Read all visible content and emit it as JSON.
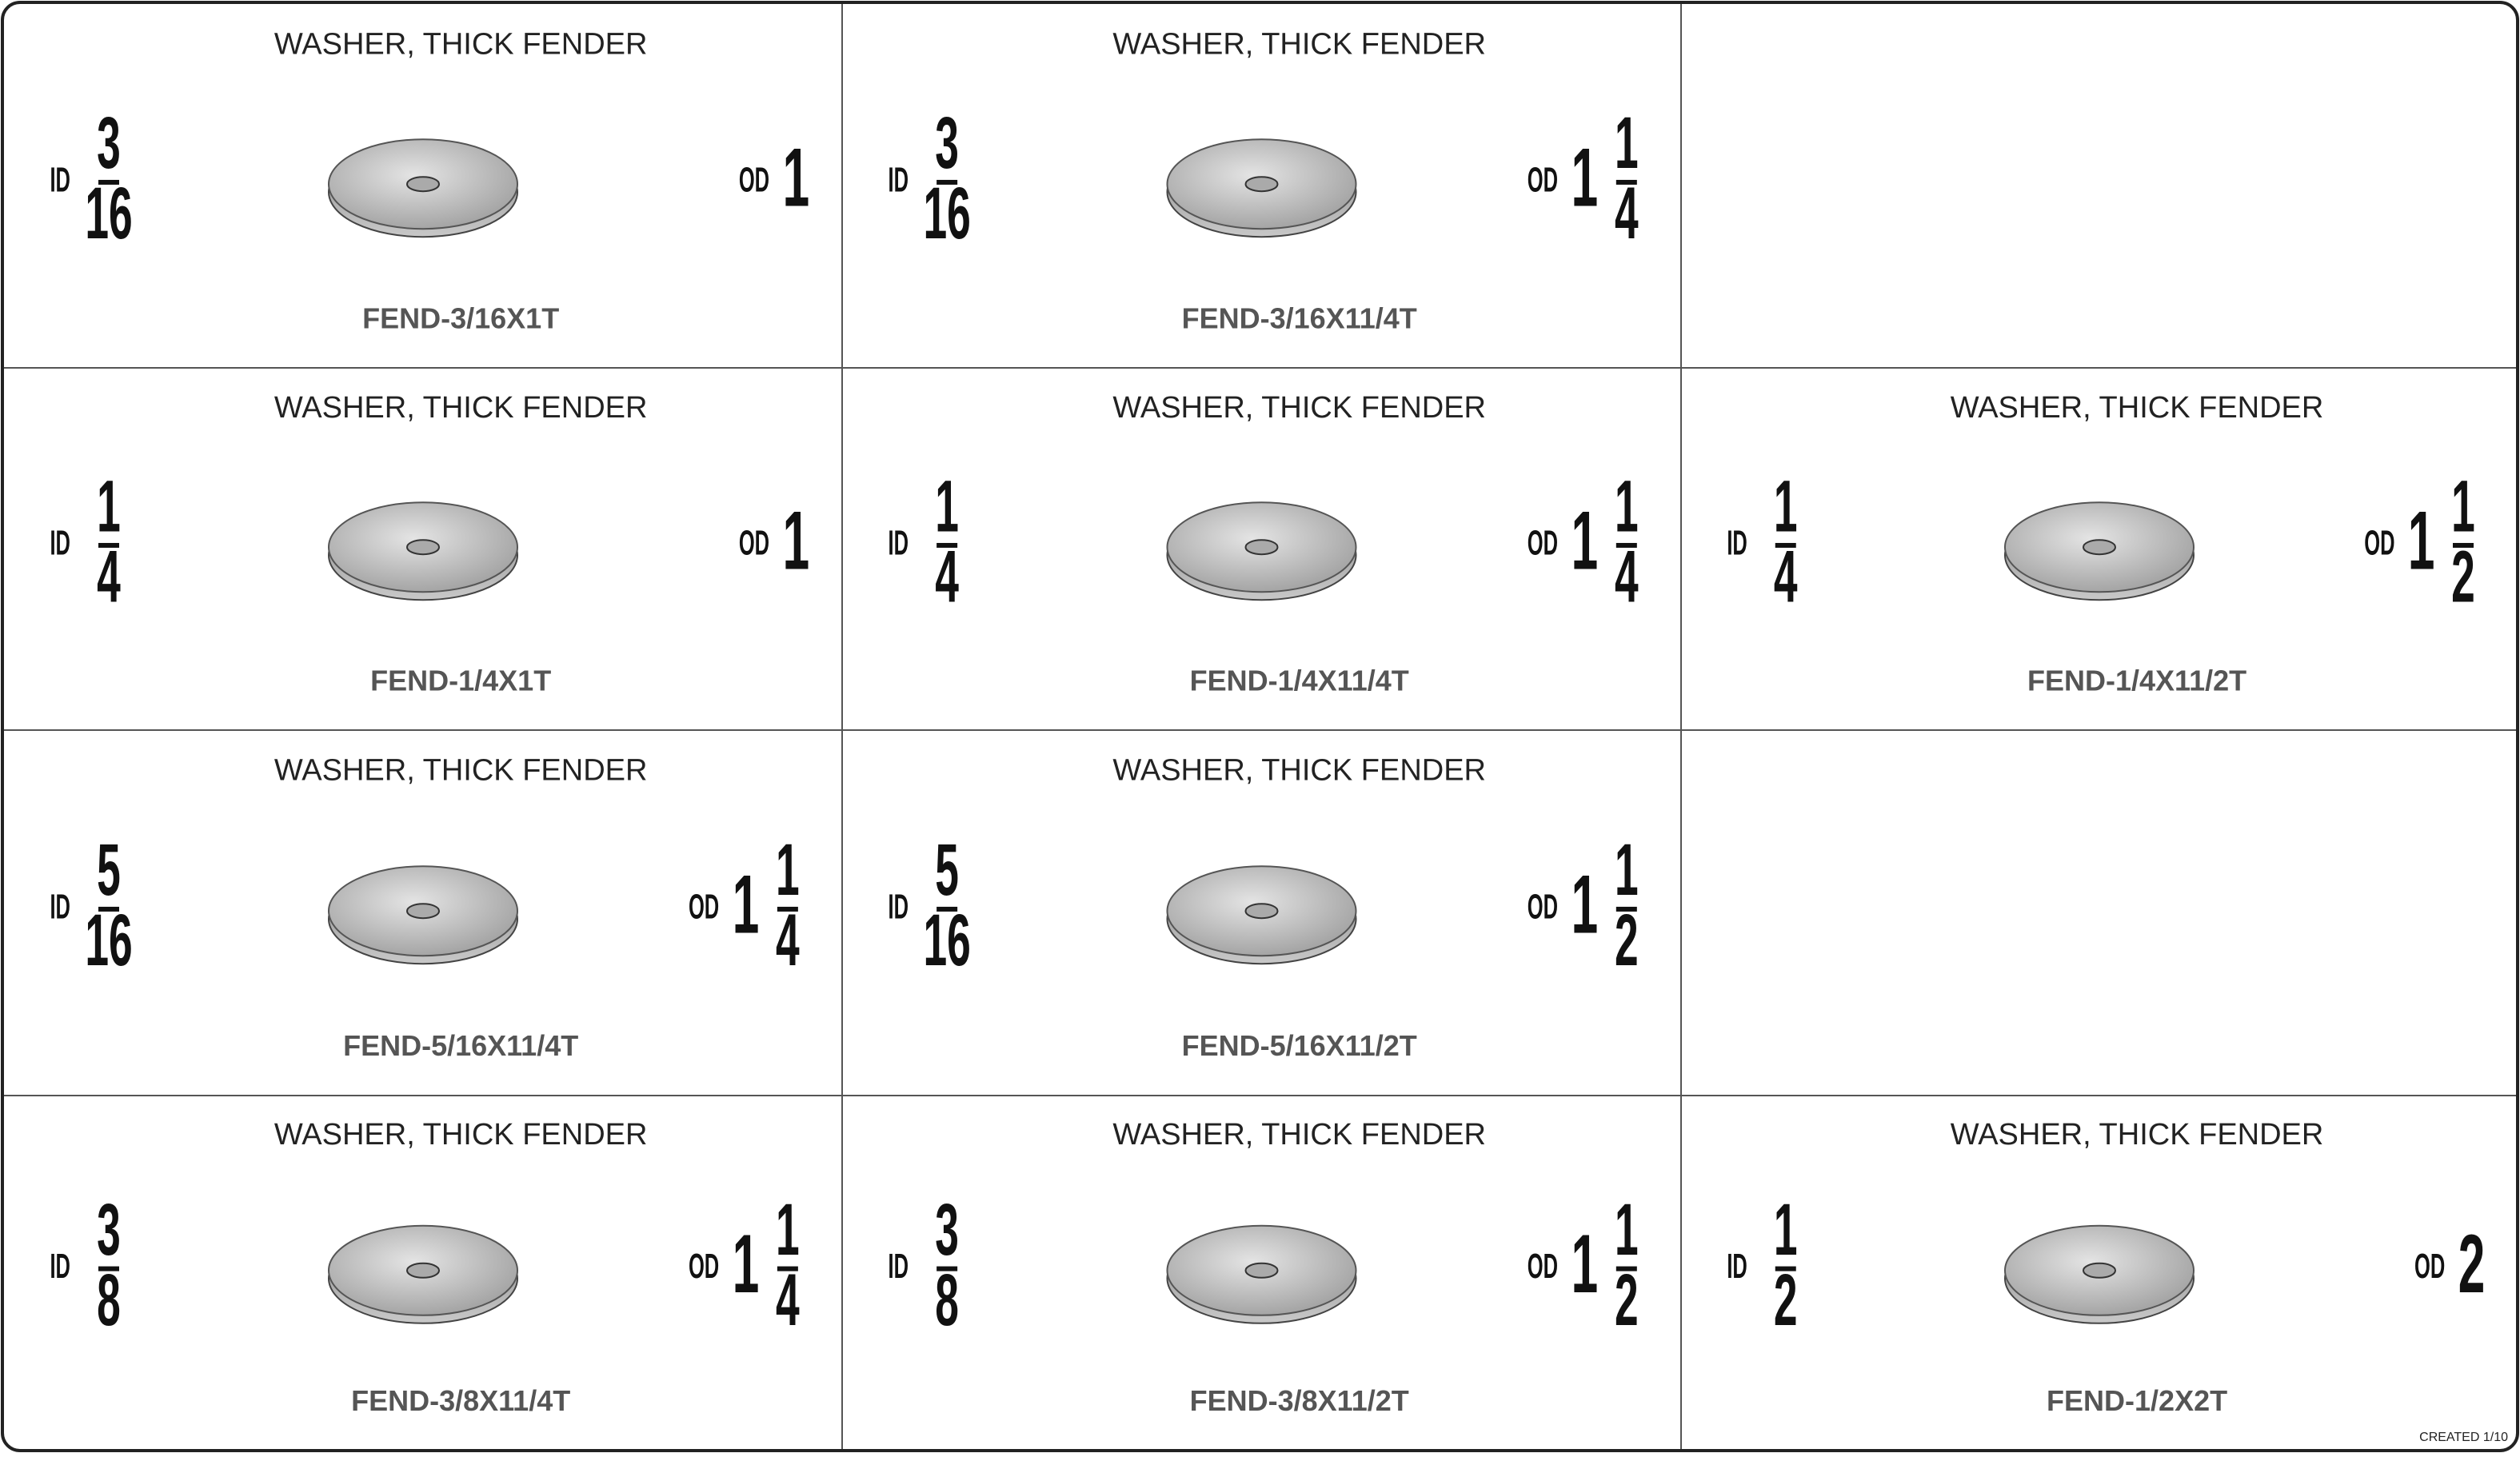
{
  "rows": [
    [
      {
        "title": "WASHER, THICK FENDER",
        "id_label": "ID",
        "id": {
          "numerator": "3",
          "denominator": "16"
        },
        "od_label": "OD",
        "od": {
          "whole": "1"
        },
        "part": "FEND-3/16X1T"
      },
      {
        "title": "WASHER, THICK FENDER",
        "id_label": "ID",
        "id": {
          "numerator": "3",
          "denominator": "16"
        },
        "od_label": "OD",
        "od": {
          "whole": "1",
          "numerator": "1",
          "denominator": "4"
        },
        "part": "FEND-3/16X11/4T"
      },
      null
    ],
    [
      {
        "title": "WASHER, THICK FENDER",
        "id_label": "ID",
        "id": {
          "numerator": "1",
          "denominator": "4"
        },
        "od_label": "OD",
        "od": {
          "whole": "1"
        },
        "part": "FEND-1/4X1T"
      },
      {
        "title": "WASHER, THICK FENDER",
        "id_label": "ID",
        "id": {
          "numerator": "1",
          "denominator": "4"
        },
        "od_label": "OD",
        "od": {
          "whole": "1",
          "numerator": "1",
          "denominator": "4"
        },
        "part": "FEND-1/4X11/4T"
      },
      {
        "title": "WASHER, THICK FENDER",
        "id_label": "ID",
        "id": {
          "numerator": "1",
          "denominator": "4"
        },
        "od_label": "OD",
        "od": {
          "whole": "1",
          "numerator": "1",
          "denominator": "2"
        },
        "part": "FEND-1/4X11/2T"
      }
    ],
    [
      {
        "title": "WASHER, THICK FENDER",
        "id_label": "ID",
        "id": {
          "numerator": "5",
          "denominator": "16"
        },
        "od_label": "OD",
        "od": {
          "whole": "1",
          "numerator": "1",
          "denominator": "4"
        },
        "part": "FEND-5/16X11/4T"
      },
      {
        "title": "WASHER, THICK FENDER",
        "id_label": "ID",
        "id": {
          "numerator": "5",
          "denominator": "16"
        },
        "od_label": "OD",
        "od": {
          "whole": "1",
          "numerator": "1",
          "denominator": "2"
        },
        "part": "FEND-5/16X11/2T"
      },
      null
    ],
    [
      {
        "title": "WASHER, THICK FENDER",
        "id_label": "ID",
        "id": {
          "numerator": "3",
          "denominator": "8"
        },
        "od_label": "OD",
        "od": {
          "whole": "1",
          "numerator": "1",
          "denominator": "4"
        },
        "part": "FEND-3/8X11/4T"
      },
      {
        "title": "WASHER, THICK FENDER",
        "id_label": "ID",
        "id": {
          "numerator": "3",
          "denominator": "8"
        },
        "od_label": "OD",
        "od": {
          "whole": "1",
          "numerator": "1",
          "denominator": "2"
        },
        "part": "FEND-3/8X11/2T"
      },
      {
        "title": "WASHER, THICK FENDER",
        "id_label": "ID",
        "id": {
          "numerator": "1",
          "denominator": "2"
        },
        "od_label": "OD",
        "od": {
          "whole": "2"
        },
        "part": "FEND-1/2X2T"
      }
    ]
  ],
  "footer": "CREATED 1/10"
}
